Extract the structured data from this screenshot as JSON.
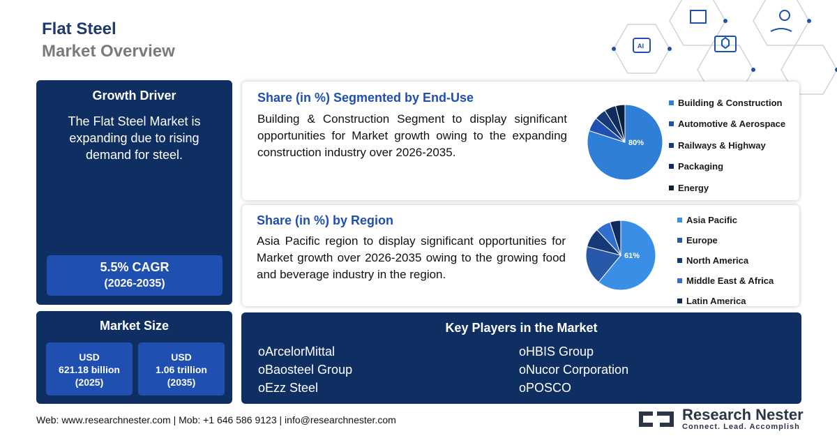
{
  "header": {
    "title": "Flat Steel",
    "subtitle": "Market Overview"
  },
  "growth_driver": {
    "heading": "Growth Driver",
    "text": "The Flat Steel Market is expanding due to rising demand for steel.",
    "cagr": "5.5% CAGR",
    "cagr_period": "(2026-2035)"
  },
  "market_size": {
    "heading": "Market Size",
    "values": [
      {
        "currency": "USD",
        "amount": "621.18 billion",
        "year": "(2025)"
      },
      {
        "currency": "USD",
        "amount": "1.06 trillion",
        "year": "(2035)"
      }
    ]
  },
  "end_use": {
    "title": "Share (in %) Segmented by End-Use",
    "text": "Building & Construction Segment to display significant opportunities for Market growth owing to the expanding construction industry over 2026-2035.",
    "pie_label": "80%",
    "legend": [
      "Building & Construction",
      "Automotive & Aerospace",
      "Railways & Highway",
      "Packaging",
      "Energy"
    ]
  },
  "region": {
    "title": "Share (in %) by Region",
    "text": "Asia Pacific region to display significant opportunities for Market growth over 2026-2035 owing to the growing food and beverage industry in the region.",
    "pie_label": "61%",
    "legend": [
      "Asia Pacific",
      "Europe",
      "North America",
      "Middle East & Africa",
      "Latin America"
    ]
  },
  "key_players": {
    "heading": "Key Players in the Market",
    "left": [
      "oArcelorMittal",
      "oBaosteel Group",
      "oEzz Steel"
    ],
    "right": [
      "oHBIS Group",
      "oNucor Corporation",
      "oPOSCO"
    ]
  },
  "footer": {
    "contact": "Web: www.researchnester.com | Mob: +1 646 586 9123 | info@researchnester.com"
  },
  "logo": {
    "name": "Research Nester",
    "tagline": "Connect. Lead. Accomplish"
  },
  "chart_data": [
    {
      "type": "pie",
      "title": "Share (in %) Segmented by End-Use",
      "categories": [
        "Building & Construction",
        "Automotive & Aerospace",
        "Railways & Highway",
        "Packaging",
        "Energy"
      ],
      "values": [
        80,
        6,
        5,
        5,
        4
      ],
      "colors": [
        "#2f7fd6",
        "#1f4fb0",
        "#163a78",
        "#0e2c5e",
        "#0a1f40"
      ]
    },
    {
      "type": "pie",
      "title": "Share (in %) by Region",
      "categories": [
        "Asia Pacific",
        "Europe",
        "North America",
        "Middle East & Africa",
        "Latin America"
      ],
      "values": [
        61,
        18,
        9,
        7,
        5
      ],
      "colors": [
        "#3a8ee6",
        "#2858a8",
        "#163a78",
        "#2f6fd0",
        "#0e2c5e"
      ]
    }
  ]
}
